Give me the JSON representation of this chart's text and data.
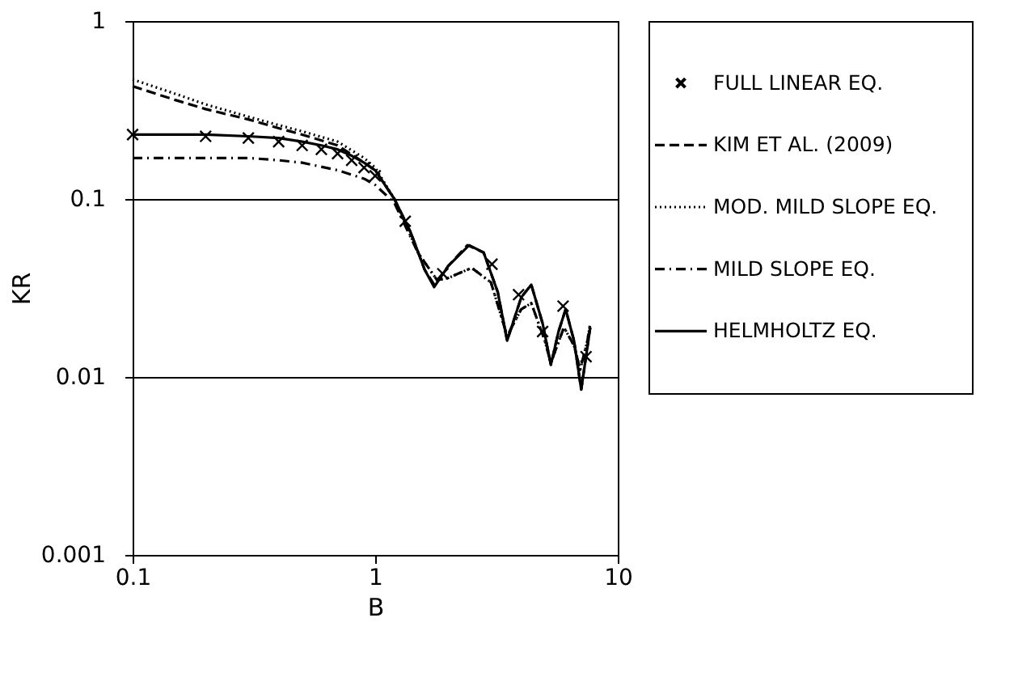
{
  "chart_data": {
    "type": "line",
    "xlabel": "B",
    "ylabel": "KR",
    "log": "xy",
    "xlim": [
      0.1,
      10
    ],
    "ylim": [
      0.001,
      1
    ],
    "xticks": [
      0.1,
      1,
      10
    ],
    "yticks": [
      0.001,
      0.01,
      0.1,
      1
    ],
    "grid": "y",
    "legend": "right",
    "series": [
      {
        "name": "FULL LINEAR EQ.",
        "type": "scatter",
        "marker": "cross",
        "color": "#000000",
        "x": [
          0.1,
          0.2,
          0.3,
          0.4,
          0.5,
          0.6,
          0.7,
          0.8,
          0.9,
          1.0,
          1.33,
          1.9,
          3.03,
          3.9,
          4.9,
          5.95,
          7.4
        ],
        "values": [
          0.23,
          0.225,
          0.22,
          0.21,
          0.2,
          0.19,
          0.18,
          0.165,
          0.15,
          0.135,
          0.075,
          0.038,
          0.043,
          0.029,
          0.018,
          0.025,
          0.013
        ]
      },
      {
        "name": "KIM ET AL. (2009)",
        "line_style": "dashed",
        "color": "#000000",
        "x": [
          0.1,
          0.15,
          0.2,
          0.3,
          0.4,
          0.5,
          0.7,
          0.9,
          1.0,
          1.2,
          1.4,
          1.6,
          1.75,
          2.0,
          2.4,
          2.8,
          3.2,
          3.5,
          4.0,
          4.4,
          4.9,
          5.3,
          5.7,
          6.1,
          6.6,
          7.07,
          7.7
        ],
        "values": [
          0.43,
          0.36,
          0.32,
          0.28,
          0.25,
          0.23,
          0.2,
          0.16,
          0.145,
          0.1,
          0.065,
          0.04,
          0.033,
          0.042,
          0.055,
          0.05,
          0.03,
          0.016,
          0.028,
          0.033,
          0.02,
          0.0117,
          0.018,
          0.024,
          0.016,
          0.0085,
          0.019
        ]
      },
      {
        "name": "MOD. MILD SLOPE EQ.",
        "line_style": "dotted",
        "color": "#000000",
        "x": [
          0.1,
          0.15,
          0.2,
          0.3,
          0.4,
          0.5,
          0.7,
          0.9,
          1.0,
          1.2,
          1.5,
          1.8,
          2.0,
          2.5,
          3.0,
          3.5,
          4.0,
          4.4,
          5.0,
          5.3,
          6.0,
          6.6,
          7.0,
          7.5,
          7.7
        ],
        "values": [
          0.47,
          0.39,
          0.34,
          0.29,
          0.26,
          0.24,
          0.21,
          0.17,
          0.15,
          0.1,
          0.05,
          0.035,
          0.036,
          0.041,
          0.034,
          0.017,
          0.024,
          0.026,
          0.016,
          0.012,
          0.019,
          0.015,
          0.011,
          0.016,
          0.02
        ]
      },
      {
        "name": "MILD SLOPE EQ.",
        "line_style": "dashdot",
        "color": "#000000",
        "x": [
          0.1,
          0.2,
          0.3,
          0.4,
          0.5,
          0.7,
          0.9,
          1.0,
          1.2,
          1.5,
          1.8,
          2.0,
          2.5,
          3.0,
          3.5,
          4.0,
          4.4,
          5.0,
          5.3,
          6.0,
          6.6,
          7.0,
          7.5,
          7.7
        ],
        "values": [
          0.17,
          0.17,
          0.17,
          0.165,
          0.16,
          0.145,
          0.13,
          0.12,
          0.095,
          0.05,
          0.035,
          0.036,
          0.041,
          0.034,
          0.017,
          0.024,
          0.026,
          0.016,
          0.012,
          0.019,
          0.015,
          0.011,
          0.016,
          0.02
        ]
      },
      {
        "name": "HELMHOLTZ EQ.",
        "line_style": "solid",
        "color": "#000000",
        "x": [
          0.1,
          0.2,
          0.3,
          0.4,
          0.5,
          0.6,
          0.7,
          0.8,
          0.9,
          1.0,
          1.2,
          1.4,
          1.6,
          1.75,
          2.0,
          2.44,
          2.8,
          3.2,
          3.5,
          4.0,
          4.4,
          4.9,
          5.3,
          5.7,
          6.1,
          6.6,
          7.07,
          7.7
        ],
        "values": [
          0.23,
          0.23,
          0.225,
          0.22,
          0.21,
          0.2,
          0.19,
          0.175,
          0.16,
          0.145,
          0.1,
          0.065,
          0.04,
          0.032,
          0.042,
          0.055,
          0.05,
          0.03,
          0.016,
          0.028,
          0.033,
          0.02,
          0.0117,
          0.018,
          0.024,
          0.016,
          0.0085,
          0.019
        ]
      }
    ]
  }
}
